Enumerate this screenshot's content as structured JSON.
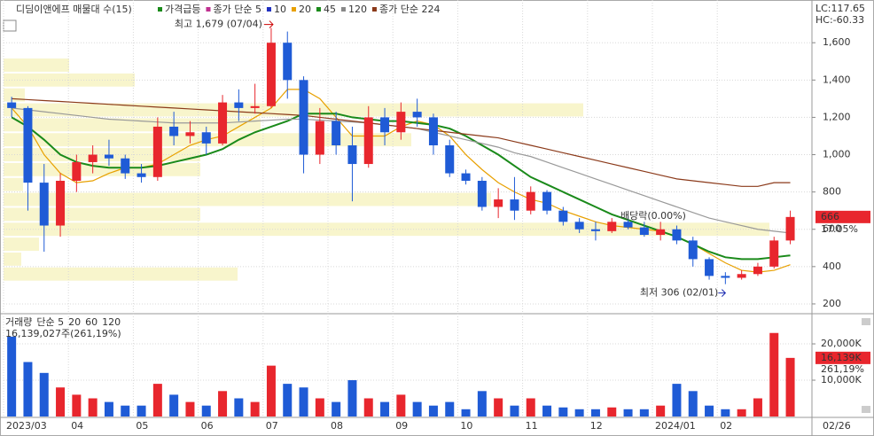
{
  "chart_data": [
    {
      "type": "candlestick",
      "title": "디딤이앤에프 매물대 수(15)",
      "legend": [
        {
          "label": "가격급등",
          "color": "#1a8a1a"
        },
        {
          "label": "종가 단순 5",
          "color": "#c03090"
        },
        {
          "label": "10",
          "color": "#2030c0"
        },
        {
          "label": "20",
          "color": "#e8a000"
        },
        {
          "label": "45",
          "color": "#1a8a1a"
        },
        {
          "label": "120",
          "color": "#888888"
        },
        {
          "label": "종가 단순 224",
          "color": "#8b3a1a"
        }
      ],
      "corner_texts": [
        "LC:117.65",
        "HC:-60.33"
      ],
      "annotations": [
        "최고 1,679 (07/04)",
        "최저 306 (02/01)",
        "배당락(0.00%)"
      ],
      "last_price": 666,
      "last_change": "17.05%",
      "categories": [
        "2023/03",
        null,
        null,
        null,
        "04",
        null,
        null,
        null,
        "05",
        null,
        null,
        null,
        "06",
        null,
        null,
        null,
        "07",
        null,
        null,
        null,
        "08",
        null,
        null,
        null,
        "09",
        null,
        null,
        null,
        "10",
        null,
        null,
        null,
        "11",
        null,
        null,
        null,
        "12",
        null,
        null,
        null,
        "2024/01",
        null,
        null,
        null,
        "02",
        null,
        null,
        null,
        null
      ],
      "end_label": "02/26",
      "open": [
        1280,
        1250,
        850,
        620,
        860,
        960,
        1000,
        980,
        900,
        880,
        1150,
        1100,
        1120,
        1060,
        1280,
        1250,
        1260,
        1600,
        1400,
        1000,
        1180,
        1050,
        950,
        1200,
        1120,
        1230,
        1200,
        1050,
        900,
        860,
        720,
        760,
        700,
        800,
        700,
        640,
        600,
        590,
        640,
        610,
        570,
        600,
        540,
        440,
        350,
        340,
        360,
        400,
        540
      ],
      "high": [
        1310,
        1260,
        950,
        900,
        1000,
        1050,
        1080,
        1000,
        950,
        1200,
        1230,
        1180,
        1150,
        1320,
        1350,
        1380,
        1679,
        1660,
        1420,
        1250,
        1230,
        1150,
        1260,
        1250,
        1280,
        1300,
        1220,
        1080,
        920,
        880,
        820,
        880,
        830,
        810,
        720,
        660,
        640,
        660,
        670,
        640,
        640,
        620,
        560,
        450,
        370,
        380,
        420,
        560,
        700
      ],
      "low": [
        1200,
        700,
        480,
        560,
        800,
        900,
        940,
        870,
        850,
        860,
        1050,
        1060,
        1000,
        1050,
        1180,
        1220,
        1250,
        1300,
        900,
        950,
        1000,
        750,
        930,
        1050,
        1080,
        1150,
        1000,
        880,
        840,
        700,
        660,
        650,
        680,
        680,
        620,
        580,
        540,
        580,
        600,
        560,
        540,
        520,
        400,
        330,
        306,
        330,
        350,
        390,
        520
      ],
      "close": [
        1250,
        850,
        620,
        860,
        960,
        1000,
        980,
        900,
        880,
        1150,
        1100,
        1120,
        1060,
        1280,
        1250,
        1260,
        1600,
        1400,
        1000,
        1180,
        1050,
        950,
        1200,
        1120,
        1230,
        1200,
        1050,
        900,
        860,
        720,
        760,
        700,
        800,
        700,
        640,
        600,
        590,
        640,
        610,
        570,
        600,
        540,
        440,
        350,
        340,
        360,
        400,
        540,
        666
      ],
      "up_color": "#e8262d",
      "down_color": "#1f5bd6",
      "lines": [
        {
          "name": "20",
          "color": "#e8a000",
          "values": [
            1250,
            1150,
            1000,
            900,
            850,
            860,
            900,
            930,
            930,
            950,
            1000,
            1050,
            1080,
            1100,
            1150,
            1200,
            1250,
            1350,
            1350,
            1300,
            1200,
            1100,
            1100,
            1100,
            1150,
            1180,
            1160,
            1100,
            1000,
            920,
            850,
            800,
            760,
            740,
            700,
            670,
            640,
            620,
            610,
            600,
            590,
            560,
            520,
            470,
            420,
            380,
            370,
            380,
            410
          ]
        },
        {
          "name": "45",
          "color": "#1a8a1a",
          "values": [
            1200,
            1150,
            1080,
            1000,
            960,
            940,
            930,
            930,
            930,
            940,
            960,
            980,
            1000,
            1030,
            1080,
            1120,
            1150,
            1180,
            1220,
            1220,
            1220,
            1200,
            1190,
            1180,
            1180,
            1170,
            1160,
            1140,
            1100,
            1050,
            1000,
            940,
            880,
            840,
            800,
            760,
            720,
            680,
            650,
            620,
            590,
            560,
            520,
            480,
            450,
            440,
            440,
            450,
            460
          ]
        },
        {
          "name": "120",
          "color": "#999999",
          "values": [
            1250,
            1240,
            1230,
            1220,
            1210,
            1200,
            1190,
            1185,
            1180,
            1175,
            1170,
            1170,
            1170,
            1170,
            1175,
            1180,
            1185,
            1190,
            1190,
            1185,
            1180,
            1175,
            1170,
            1160,
            1150,
            1140,
            1120,
            1100,
            1080,
            1060,
            1040,
            1010,
            990,
            960,
            930,
            900,
            870,
            840,
            810,
            780,
            750,
            720,
            690,
            660,
            640,
            620,
            600,
            590,
            580
          ]
        },
        {
          "name": "종가 단순 224",
          "color": "#8b3a1a",
          "values": [
            1300,
            1295,
            1290,
            1285,
            1280,
            1275,
            1270,
            1265,
            1260,
            1255,
            1250,
            1245,
            1240,
            1235,
            1230,
            1225,
            1220,
            1215,
            1210,
            1200,
            1190,
            1180,
            1170,
            1160,
            1150,
            1140,
            1130,
            1120,
            1110,
            1100,
            1090,
            1070,
            1050,
            1030,
            1010,
            990,
            970,
            950,
            930,
            910,
            890,
            870,
            860,
            850,
            840,
            830,
            830,
            850,
            850
          ]
        }
      ],
      "profile": {
        "bins": [
          1520,
          1440,
          1360,
          1280,
          1200,
          1120,
          1040,
          960,
          880,
          800,
          720,
          640,
          560,
          480,
          400,
          320
        ],
        "counts": [
          74,
          148,
          24,
          654,
          290,
          460,
          222,
          222,
          22,
          550,
          222,
          864,
          40,
          20,
          264
        ],
        "xlim": [
          0,
          912
        ],
        "color": "#f8f5cc"
      },
      "ylim": [
        157,
        1810
      ],
      "yticks": [
        200,
        400,
        600,
        800,
        {
          "value": 1000,
          "label": "1,000"
        },
        {
          "value": 1200,
          "label": "1,200"
        },
        {
          "value": 1400,
          "label": "1,400"
        },
        {
          "value": 1600,
          "label": "1,600"
        }
      ],
      "grid": true
    },
    {
      "type": "bar",
      "legend": [
        {
          "label": "거래량",
          "color": "#2a8a8a"
        },
        {
          "label": "단순 5",
          "color": "#c03090"
        },
        {
          "label": "20",
          "color": "#e8a000"
        },
        {
          "label": "60",
          "color": "#1a8a1a"
        },
        {
          "label": "120",
          "color": "#888888"
        }
      ],
      "subtitle": "16,139,027주(261,19%)",
      "last_value": {
        "value": 16139,
        "label": "16,139K"
      },
      "last_ratio": "261,19%",
      "values": [
        22000,
        15000,
        12000,
        8000,
        6000,
        5000,
        4000,
        3000,
        3000,
        9000,
        6000,
        4000,
        3000,
        7000,
        5000,
        4000,
        14000,
        9000,
        8000,
        5000,
        4000,
        10000,
        5000,
        4000,
        6000,
        4000,
        3000,
        4000,
        2000,
        7000,
        5000,
        3000,
        5000,
        3000,
        2500,
        2000,
        2000,
        2500,
        2000,
        2000,
        3000,
        9000,
        7000,
        3000,
        2000,
        2000,
        5000,
        23000,
        16139
      ],
      "ylim": [
        0,
        24400
      ],
      "yticks": [
        {
          "value": 10000,
          "label": "10,000K"
        },
        {
          "value": 20000,
          "label": "20,000K"
        }
      ],
      "grid": true
    }
  ]
}
